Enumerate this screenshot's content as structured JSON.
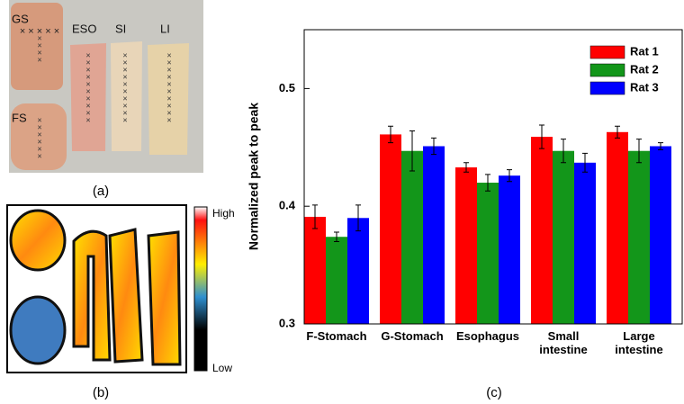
{
  "panel_a": {
    "label": "(a)",
    "tags": [
      "GS",
      "ESO",
      "SI",
      "LI",
      "FS"
    ]
  },
  "panel_b": {
    "label": "(b)",
    "high": "High",
    "low": "Low"
  },
  "chart_data": {
    "type": "bar",
    "caption": "(c)",
    "ylabel": "Normalized peak to peak",
    "categories": [
      "F-Stomach",
      "G-Stomach",
      "Esophagus",
      "Small intestine",
      "Large intestine"
    ],
    "series": [
      {
        "name": "Rat 1",
        "color": "#ff0000",
        "values": [
          0.391,
          0.461,
          0.433,
          0.459,
          0.463
        ],
        "errors": [
          0.01,
          0.007,
          0.004,
          0.01,
          0.005
        ]
      },
      {
        "name": "Rat 2",
        "color": "#13961a",
        "values": [
          0.374,
          0.447,
          0.42,
          0.447,
          0.447
        ],
        "errors": [
          0.004,
          0.017,
          0.007,
          0.01,
          0.01
        ]
      },
      {
        "name": "Rat 3",
        "color": "#0000ff",
        "values": [
          0.39,
          0.451,
          0.426,
          0.437,
          0.451
        ],
        "errors": [
          0.011,
          0.007,
          0.005,
          0.008,
          0.003
        ]
      }
    ],
    "ylim": [
      0.3,
      0.55
    ],
    "yticks": [
      0.3,
      0.4,
      0.5
    ],
    "legend": "upper right"
  }
}
